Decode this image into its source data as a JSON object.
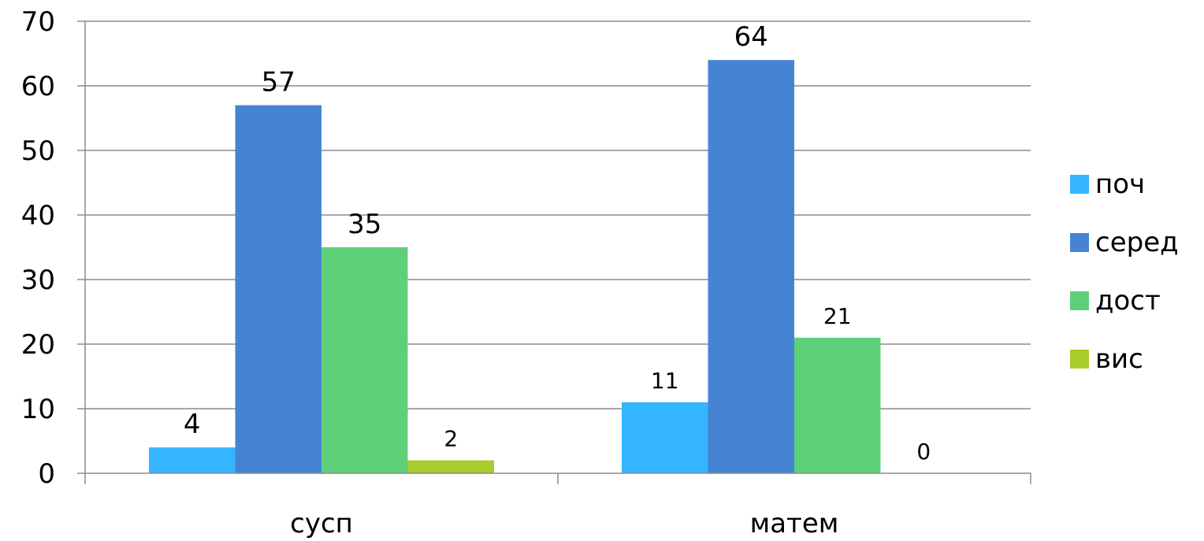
{
  "chart_data": {
    "type": "bar",
    "categories": [
      "сусп",
      "матем"
    ],
    "series": [
      {
        "name": "поч",
        "values": [
          4,
          11
        ],
        "color": "#33B5FF"
      },
      {
        "name": "серед",
        "values": [
          57,
          64
        ],
        "color": "#4684D3"
      },
      {
        "name": "дост",
        "values": [
          35,
          21
        ],
        "color": "#5ED07A"
      },
      {
        "name": "вис",
        "values": [
          2,
          0
        ],
        "color": "#A8CC2C"
      }
    ],
    "data_labels": [
      [
        "4",
        "11"
      ],
      [
        "57",
        "64"
      ],
      [
        "35",
        "21"
      ],
      [
        "2",
        "0"
      ]
    ],
    "ylim": [
      0,
      70
    ],
    "yticks": [
      0,
      10,
      20,
      30,
      40,
      50,
      60,
      70
    ],
    "grid": true,
    "legend": "right"
  }
}
